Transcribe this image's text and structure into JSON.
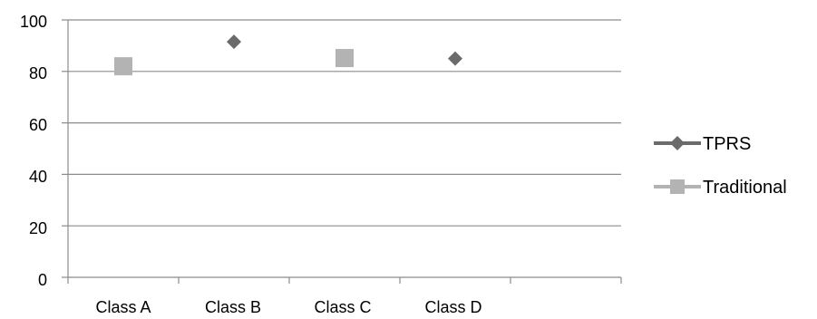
{
  "chart_data": {
    "type": "scatter",
    "categories": [
      "Class A",
      "Class B",
      "Class C",
      "Class D"
    ],
    "category_slots": 5,
    "series": [
      {
        "name": "TPRS",
        "marker": "diamond",
        "color": "#6b6b6b",
        "values": [
          null,
          91.5,
          null,
          85
        ]
      },
      {
        "name": "Traditional",
        "marker": "square",
        "color": "#b3b3b3",
        "values": [
          82,
          null,
          85.2,
          null
        ]
      }
    ],
    "y_ticks": [
      "0",
      "20",
      "40",
      "60",
      "80",
      "100"
    ],
    "ylim": [
      0,
      100
    ],
    "grid": true,
    "legend": "right",
    "colors": {
      "axis": "#8c8c8c",
      "grid": "#8c8c8c"
    }
  }
}
